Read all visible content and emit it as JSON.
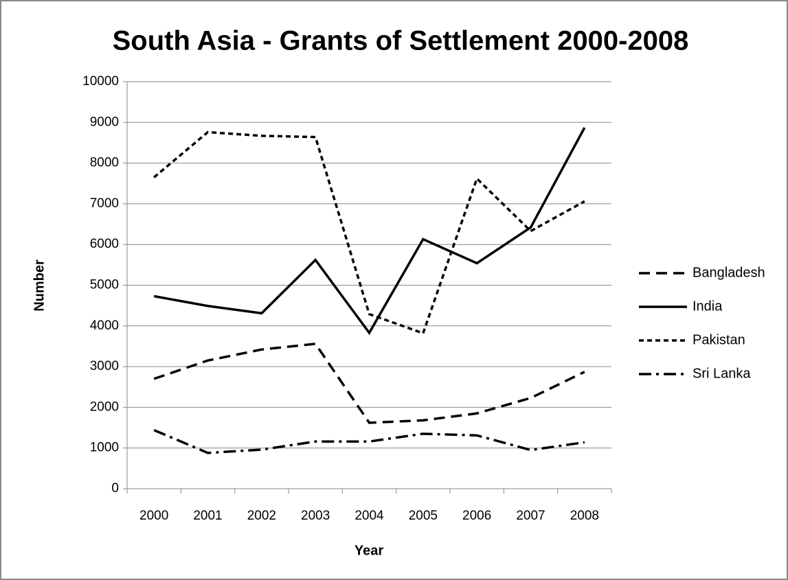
{
  "chart_data": {
    "type": "line",
    "title": "South Asia - Grants of Settlement 2000-2008",
    "x_label": "Year",
    "y_label": "Number",
    "categories": [
      "2000",
      "2001",
      "2002",
      "2003",
      "2004",
      "2005",
      "2006",
      "2007",
      "2008"
    ],
    "series": [
      {
        "name": "Bangladesh",
        "color": "#000000",
        "dash": "long",
        "values": [
          2700,
          3150,
          3420,
          3560,
          1620,
          1680,
          1850,
          2230,
          2870
        ]
      },
      {
        "name": "India",
        "color": "#000000",
        "dash": "solid",
        "values": [
          4730,
          4490,
          4310,
          5620,
          3830,
          6130,
          5540,
          6420,
          8870
        ]
      },
      {
        "name": "Pakistan",
        "color": "#000000",
        "dash": "short",
        "values": [
          7650,
          8760,
          8670,
          8640,
          4290,
          3820,
          7620,
          6330,
          7060
        ]
      },
      {
        "name": "Sri Lanka",
        "color": "#000000",
        "dash": "dash-dot",
        "values": [
          1440,
          880,
          960,
          1160,
          1160,
          1350,
          1310,
          950,
          1140
        ]
      }
    ],
    "ylim": [
      0,
      10000
    ],
    "yticks": [
      0,
      1000,
      2000,
      3000,
      4000,
      5000,
      6000,
      7000,
      8000,
      9000,
      10000
    ],
    "grid": true,
    "legend": "right"
  }
}
